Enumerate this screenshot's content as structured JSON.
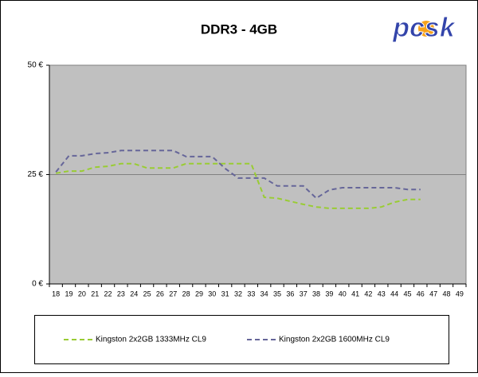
{
  "chart_data": {
    "type": "line",
    "title": "DDR3 - 4GB",
    "logo": "pcsk",
    "categories": [
      "18",
      "19",
      "20",
      "21",
      "22",
      "23",
      "24",
      "25",
      "26",
      "27",
      "28",
      "29",
      "30",
      "31",
      "32",
      "33",
      "34",
      "35",
      "36",
      "37",
      "38",
      "39",
      "40",
      "41",
      "42",
      "43",
      "44",
      "45",
      "46",
      "47",
      "48",
      "49"
    ],
    "series": [
      {
        "name": "Kingston 2x2GB 1333MHz CL9",
        "color": "#99cc33",
        "values": [
          25.3,
          25.8,
          25.8,
          26.7,
          26.9,
          27.5,
          27.5,
          26.5,
          26.5,
          26.5,
          27.5,
          27.5,
          27.5,
          27.5,
          27.5,
          27.5,
          19.8,
          19.6,
          18.9,
          18.2,
          17.6,
          17.3,
          17.3,
          17.3,
          17.3,
          17.6,
          18.7,
          19.3,
          19.3,
          null,
          null,
          null
        ]
      },
      {
        "name": "Kingston 2x2GB 1600MHz CL9",
        "color": "#666699",
        "values": [
          25.6,
          29.3,
          29.3,
          29.8,
          30.0,
          30.5,
          30.5,
          30.5,
          30.5,
          30.5,
          29.1,
          29.1,
          29.1,
          26.4,
          24.2,
          24.2,
          24.2,
          22.4,
          22.4,
          22.4,
          19.6,
          21.5,
          22.0,
          22.0,
          22.0,
          22.0,
          22.0,
          21.6,
          21.6,
          null,
          null,
          null
        ]
      }
    ],
    "ylim": [
      0,
      50
    ],
    "yticks": [
      {
        "value": 0,
        "label": "0 €"
      },
      {
        "value": 25,
        "label": "25 €"
      },
      {
        "value": 50,
        "label": "50 €"
      }
    ],
    "grid": true,
    "legend": "bottom",
    "plot_color": "#c0c0c0"
  }
}
